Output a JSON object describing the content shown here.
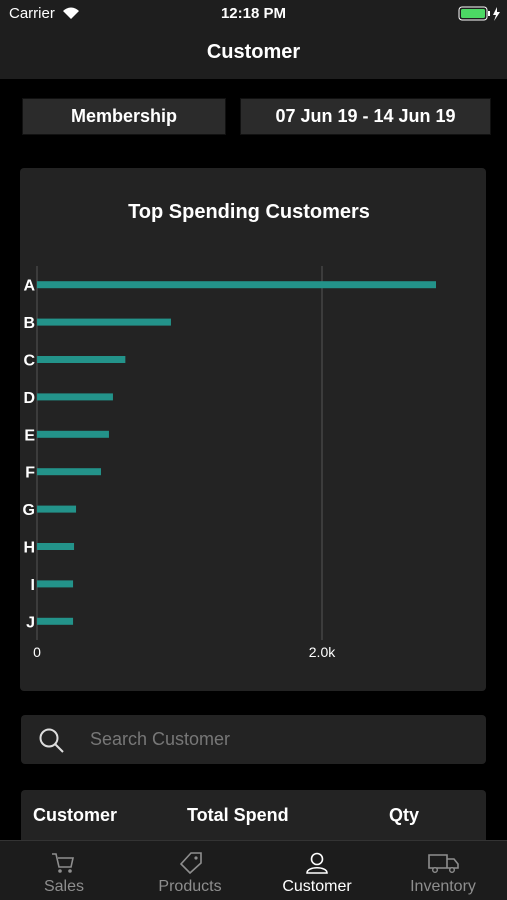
{
  "status_bar": {
    "carrier": "Carrier",
    "time": "12:18 PM"
  },
  "nav": {
    "title": "Customer"
  },
  "filters": {
    "group": "Membership",
    "date_range": "07 Jun 19 - 14 Jun 19"
  },
  "chart_data": {
    "type": "bar",
    "orientation": "horizontal",
    "title": "Top Spending Customers",
    "categories": [
      "A",
      "B",
      "C",
      "D",
      "E",
      "F",
      "G",
      "H",
      "I",
      "J"
    ],
    "values": [
      2800,
      940,
      620,
      533,
      505,
      449,
      274,
      260,
      253,
      253
    ],
    "color": "#23938a",
    "xlim": [
      0,
      3000
    ],
    "xticks": [
      0,
      {
        "value": 2000,
        "label": "2.0k"
      }
    ],
    "grid": true
  },
  "search": {
    "placeholder": "Search Customer"
  },
  "table": {
    "columns": [
      "Customer",
      "Total Spend",
      "Qty"
    ]
  },
  "tab_bar": {
    "tabs": [
      "Sales",
      "Products",
      "Customer",
      "Inventory"
    ],
    "active": 2
  }
}
